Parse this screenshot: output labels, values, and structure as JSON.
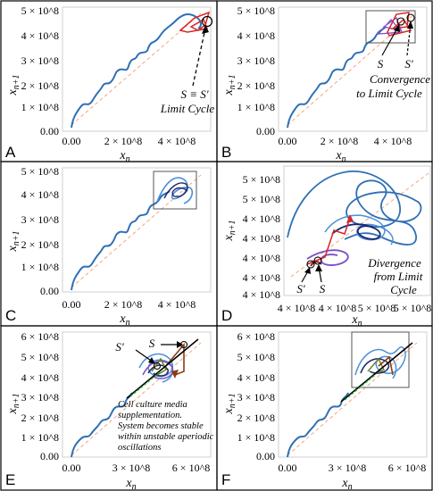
{
  "chart_data": [
    {
      "panel": "A",
      "type": "line",
      "xlabel": "x_n",
      "ylabel": "x_{n+1}",
      "x_ticks": [
        "0.00",
        "2 × 10^8",
        "4 × 10^8"
      ],
      "y_ticks": [
        "0.00",
        "1 × 10^8",
        "2 × 10^8",
        "3 × 10^8",
        "4 × 10^8",
        "5 × 10^8"
      ],
      "xlim": [
        0,
        520000000.0
      ],
      "ylim": [
        0,
        500000000.0
      ],
      "series": [
        {
          "color": "#2f6fb5",
          "x": [
            20000000.0,
            50000000.0,
            90000000.0,
            120000000.0,
            160000000.0,
            200000000.0,
            240000000.0,
            280000000.0,
            320000000.0,
            360000000.0,
            400000000.0,
            430000000.0,
            450000000.0
          ],
          "y": [
            20000000.0,
            80000000.0,
            120000000.0,
            150000000.0,
            170000000.0,
            220000000.0,
            250000000.0,
            310000000.0,
            330000000.0,
            380000000.0,
            430000000.0,
            460000000.0,
            480000000.0
          ]
        },
        {
          "color": "#f4a582",
          "x": [
            30000000.0,
            460000000.0
          ],
          "y": [
            30000000.0,
            460000000.0
          ]
        }
      ],
      "annotations": [
        "S ≡ S'",
        "Limit Cycle"
      ]
    },
    {
      "panel": "B",
      "type": "line",
      "xlabel": "x_n",
      "ylabel": "x_{n+1}",
      "x_ticks": [
        "0.00",
        "2 × 10^8",
        "4 × 10^8"
      ],
      "y_ticks": [
        "0.00",
        "1 × 10^8",
        "2 × 10^8",
        "3 × 10^8",
        "4 × 10^8",
        "5 × 10^8"
      ],
      "xlim": [
        0,
        520000000.0
      ],
      "ylim": [
        0,
        500000000.0
      ],
      "annotations": [
        "S",
        "S'",
        "Convergence",
        "to Limit Cycle"
      ]
    },
    {
      "panel": "C",
      "type": "line",
      "xlabel": "x_n",
      "ylabel": "x_{n+1}",
      "x_ticks": [
        "0.00",
        "2 × 10^8",
        "4 × 10^8"
      ],
      "y_ticks": [
        "0.00",
        "1 × 10^8",
        "2 × 10^8",
        "3 × 10^8",
        "4 × 10^8",
        "5 × 10^8"
      ],
      "xlim": [
        0,
        520000000.0
      ],
      "ylim": [
        0,
        500000000.0
      ]
    },
    {
      "panel": "D",
      "type": "line",
      "xlabel": "x_n",
      "ylabel": "x_{n+1}",
      "x_ticks": [
        "4 × 10^8",
        "4 × 10^8",
        "5 × 10^8",
        "5 × 10^8"
      ],
      "y_ticks": [
        "4 × 10^8",
        "4 × 10^8",
        "4 × 10^8",
        "4 × 10^8",
        "4 × 10^8",
        "5 × 10^8",
        "5 × 10^8"
      ],
      "annotations": [
        "S'",
        "S",
        "Divergence",
        "from Limit",
        "Cycle"
      ]
    },
    {
      "panel": "E",
      "type": "line",
      "xlabel": "x_n",
      "ylabel": "x_{n+1}",
      "x_ticks": [
        "0.00",
        "3 × 10^8",
        "6 × 10^8"
      ],
      "y_ticks": [
        "0.00",
        "1 × 10^8",
        "2 × 10^8",
        "3 × 10^8",
        "4 × 10^8",
        "5 × 10^8",
        "6 × 10^8"
      ],
      "xlim": [
        0,
        640000000.0
      ],
      "ylim": [
        0,
        600000000.0
      ],
      "annotations": [
        "S'",
        "S",
        "Cell culture media",
        "supplementation.",
        "System becomes stable",
        "within unstable aperiodic",
        "oscillations"
      ]
    },
    {
      "panel": "F",
      "type": "line",
      "xlabel": "x_n",
      "ylabel": "x_{n+1}",
      "x_ticks": [
        "0.00",
        "3 × 10^8",
        "6 × 10^8"
      ],
      "y_ticks": [
        "0.00",
        "1 × 10^8",
        "2 × 10^8",
        "3 × 10^8",
        "4 × 10^8",
        "5 × 10^8",
        "6 × 10^8"
      ],
      "xlim": [
        0,
        640000000.0
      ],
      "ylim": [
        0,
        600000000.0
      ]
    }
  ],
  "colors": {
    "trajectory": "#2f6fb5",
    "identity": "#f4a582",
    "limit_cycle_red": "#d62728",
    "dark_blue": "#1a2a6c",
    "purple": "#7b4fc9",
    "brown": "#8c3b10",
    "olive": "#6b7d1e",
    "green": "#2ca02c",
    "black_line": "#000000"
  }
}
